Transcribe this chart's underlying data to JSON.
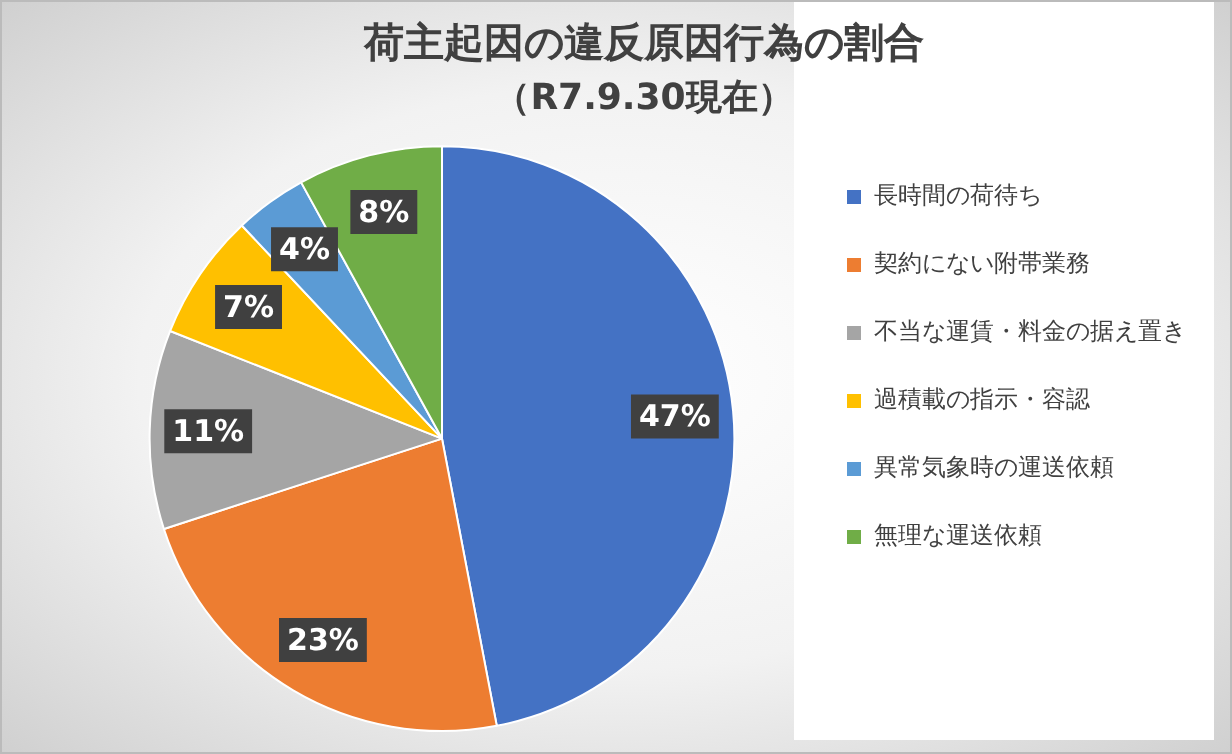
{
  "chart_data": {
    "type": "pie",
    "title": "荷主起因の違反原因行為の割合",
    "subtitle": "（R7.9.30現在）",
    "categories": [
      "長時間の荷待ち",
      "契約にない附帯業務",
      "不当な運賃・料金の据え置き",
      "過積載の指示・容認",
      "異常気象時の運送依頼",
      "無理な運送依頼"
    ],
    "values": [
      47,
      23,
      11,
      7,
      4,
      8
    ],
    "colors": [
      "#4472c4",
      "#ed7d31",
      "#a5a5a5",
      "#ffc000",
      "#5b9bd5",
      "#70ad47"
    ],
    "value_labels": [
      "47%",
      "23%",
      "11%",
      "7%",
      "4%",
      "8%"
    ],
    "legend": "right"
  }
}
